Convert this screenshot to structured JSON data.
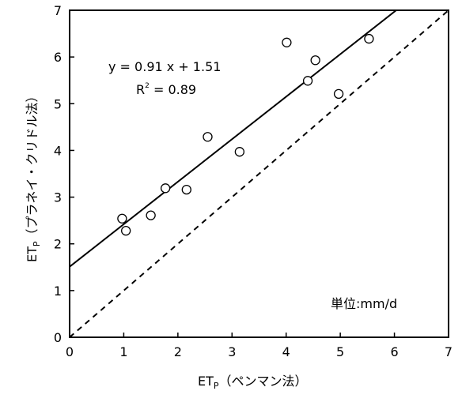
{
  "chart_data": {
    "type": "scatter",
    "xlabel": {
      "main": "ET",
      "sub": "P",
      "rest": "（ペンマン法）"
    },
    "ylabel": {
      "main": "ET",
      "sub": "P",
      "rest": "（プラネイ・クリドル法）"
    },
    "xlim": [
      0,
      7
    ],
    "ylim": [
      0,
      7
    ],
    "x_ticks": [
      "0",
      "1",
      "2",
      "3",
      "4",
      "5",
      "6",
      "7"
    ],
    "y_ticks": [
      "0",
      "1",
      "2",
      "3",
      "4",
      "5",
      "6",
      "7"
    ],
    "grid": false,
    "points": [
      {
        "x": 0.97,
        "y": 2.54
      },
      {
        "x": 1.04,
        "y": 2.28
      },
      {
        "x": 1.5,
        "y": 2.61
      },
      {
        "x": 1.77,
        "y": 3.19
      },
      {
        "x": 2.16,
        "y": 3.16
      },
      {
        "x": 2.55,
        "y": 4.29
      },
      {
        "x": 3.14,
        "y": 3.97
      },
      {
        "x": 4.01,
        "y": 6.31
      },
      {
        "x": 4.4,
        "y": 5.49
      },
      {
        "x": 4.54,
        "y": 5.93
      },
      {
        "x": 4.97,
        "y": 5.21
      },
      {
        "x": 5.53,
        "y": 6.39
      }
    ],
    "regression": {
      "slope": 0.91,
      "intercept": 1.51,
      "style": "solid"
    },
    "identity_line": {
      "slope": 1,
      "intercept": 0,
      "style": "dashed"
    },
    "annotations": {
      "equation": "y = 0.91 x + 1.51",
      "r2_main": "R",
      "r2_sup": "2",
      "r2_rest": " = 0.89",
      "unit": "単位:mm/d"
    }
  }
}
